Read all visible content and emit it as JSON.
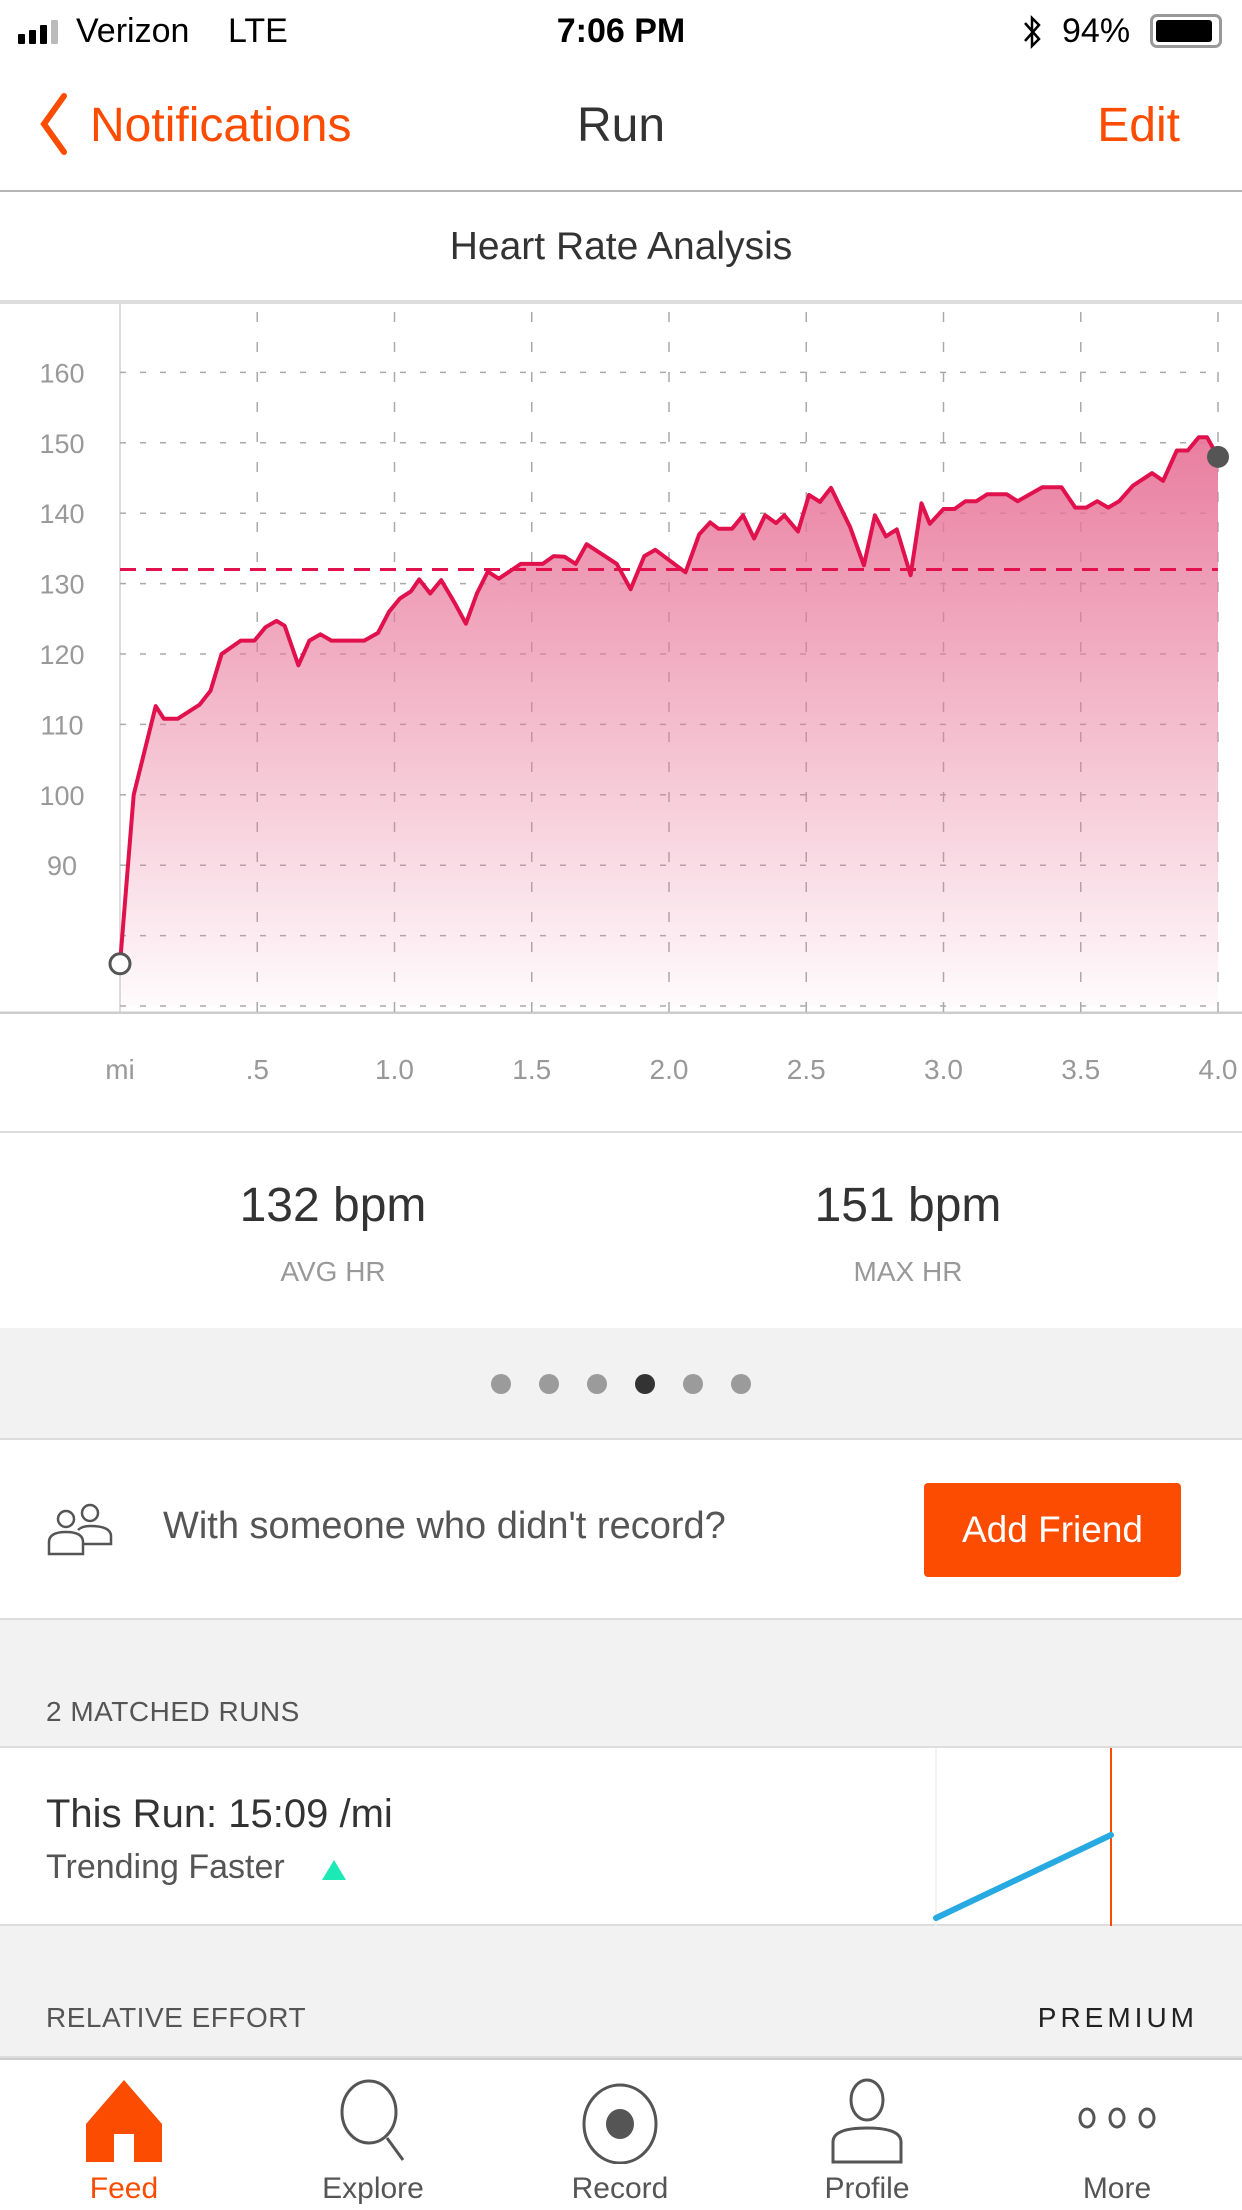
{
  "status_bar": {
    "carrier": "Verizon",
    "network": "LTE",
    "time": "7:06 PM",
    "battery": "94%",
    "battery_level": 0.94,
    "icons": [
      "signal-icon",
      "bluetooth-icon",
      "battery-icon"
    ]
  },
  "nav": {
    "back_label": "Notifications",
    "title": "Run",
    "edit_label": "Edit"
  },
  "colors": {
    "accent": "#fc4c02",
    "hr_line": "#e0114c",
    "hr_fill": "#e8779a",
    "trend_up": "#1de9b6",
    "matched_line": "#27aae1"
  },
  "chart_data": {
    "type": "area",
    "title": "Heart Rate Analysis",
    "xlabel": "mi",
    "x_ticks": [
      ".5",
      "1.0",
      "1.5",
      "2.0",
      "2.5",
      "3.0",
      "3.5",
      "4.0"
    ],
    "y_ticks": [
      90,
      100,
      110,
      120,
      130,
      140,
      150,
      160
    ],
    "xlim": [
      0,
      4.0
    ],
    "ylim": [
      70,
      170
    ],
    "grid": true,
    "average_line": 132,
    "x": [
      0,
      0.05,
      0.13,
      0.16,
      0.21,
      0.29,
      0.33,
      0.37,
      0.44,
      0.49,
      0.53,
      0.57,
      0.6,
      0.65,
      0.69,
      0.73,
      0.77,
      0.89,
      0.94,
      0.98,
      1.02,
      1.06,
      1.09,
      1.13,
      1.17,
      1.22,
      1.26,
      1.3,
      1.34,
      1.38,
      1.46,
      1.54,
      1.58,
      1.62,
      1.66,
      1.7,
      1.81,
      1.86,
      1.91,
      1.95,
      2.06,
      2.11,
      2.15,
      2.18,
      2.23,
      2.27,
      2.31,
      2.35,
      2.39,
      2.42,
      2.47,
      2.51,
      2.55,
      2.59,
      2.66,
      2.71,
      2.75,
      2.79,
      2.83,
      2.88,
      2.92,
      2.95,
      3.0,
      3.04,
      3.08,
      3.12,
      3.16,
      3.23,
      3.27,
      3.36,
      3.43,
      3.48,
      3.52,
      3.56,
      3.6,
      3.64,
      3.69,
      3.76,
      3.8,
      3.85,
      3.89,
      3.93,
      3.96,
      4.0
    ],
    "y": [
      76,
      100,
      112.6,
      110.8,
      110.8,
      112.8,
      114.8,
      120,
      121.9,
      121.9,
      123.8,
      124.7,
      124,
      118.4,
      121.9,
      122.8,
      121.9,
      121.9,
      123,
      126,
      127.9,
      128.9,
      130.6,
      128.6,
      130.5,
      127.2,
      124.3,
      128.6,
      131.7,
      130.7,
      132.8,
      132.8,
      133.9,
      133.8,
      132.8,
      135.6,
      132.8,
      129.2,
      133.9,
      134.8,
      131.6,
      137,
      138.7,
      137.8,
      137.8,
      139.7,
      136.4,
      139.7,
      138.6,
      139.7,
      137.4,
      142.6,
      141.6,
      143.6,
      138,
      132.6,
      139.7,
      136.7,
      137.7,
      131.2,
      141.4,
      138.5,
      140.6,
      140.6,
      141.7,
      141.7,
      142.7,
      142.7,
      141.7,
      143.7,
      143.7,
      140.8,
      140.8,
      141.7,
      140.8,
      141.7,
      143.9,
      145.7,
      144.6,
      148.9,
      148.9,
      150.8,
      150.8,
      148
    ]
  },
  "stats": [
    {
      "value": "132 bpm",
      "label": "AVG HR"
    },
    {
      "value": "151 bpm",
      "label": "MAX HR"
    }
  ],
  "pager": {
    "count": 6,
    "active_index": 3
  },
  "friend": {
    "prompt": "With someone who didn't record?",
    "button": "Add Friend"
  },
  "matched": {
    "header": "2 MATCHED RUNS",
    "this_run": "This Run: 15:09 /mi",
    "trend": "Trending Faster",
    "trend_icon": "triangle-up-icon"
  },
  "relative_effort": {
    "header": "RELATIVE EFFORT",
    "badge": "PREMIUM"
  },
  "tabs": [
    {
      "label": "Feed",
      "icon": "home-icon",
      "active": true
    },
    {
      "label": "Explore",
      "icon": "search-icon",
      "active": false
    },
    {
      "label": "Record",
      "icon": "record-icon",
      "active": false
    },
    {
      "label": "Profile",
      "icon": "profile-icon",
      "active": false
    },
    {
      "label": "More",
      "icon": "more-icon",
      "active": false
    }
  ]
}
